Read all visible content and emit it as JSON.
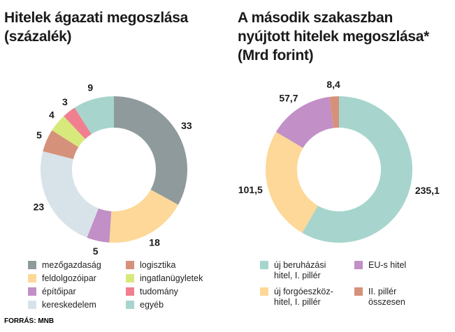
{
  "chart_data": [
    {
      "type": "donut",
      "title": "Hitelek ágazati megoszlása (százalék)",
      "categories": [
        "mezőgazdaság",
        "feldolgozóipar",
        "építőipar",
        "kereskedelem",
        "logisztika",
        "ingatlanügyletek",
        "tudomány",
        "egyéb"
      ],
      "values": [
        33,
        18,
        5,
        23,
        5,
        4,
        3,
        9
      ],
      "colors": [
        "#8f9a9c",
        "#fdd898",
        "#c28fc6",
        "#d8e3e9",
        "#d6917b",
        "#d8e97c",
        "#f0808f",
        "#a7d5cd"
      ]
    },
    {
      "type": "donut",
      "title": "A második szakaszban nyújtott hitelek megoszlása* (Mrd forint)",
      "categories": [
        "új beruházási hitel, I. pillér",
        "új forgóeszköz-hitel, I. pillér",
        "EU-s hitel",
        "II. pillér összesen"
      ],
      "values": [
        235.1,
        101.5,
        57.7,
        8.4
      ],
      "value_labels": [
        "235,1",
        "101,5",
        "57,7",
        "8,4"
      ],
      "colors": [
        "#a7d5cd",
        "#fdd898",
        "#c28fc6",
        "#d6917b"
      ]
    }
  ],
  "source": "FORRÁS: MNB"
}
